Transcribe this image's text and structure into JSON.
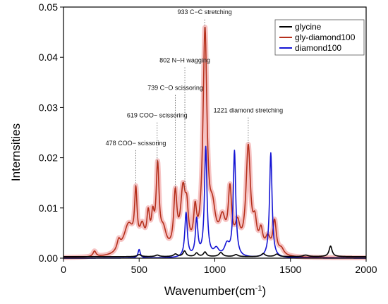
{
  "chart_data": {
    "type": "line",
    "title": "",
    "xlabel": "Wavenumber(cm",
    "xlabel_sup": "-1",
    "xlabel_suffix": ")",
    "ylabel": "Internsities",
    "xlim": [
      0,
      2000
    ],
    "ylim": [
      0,
      0.05
    ],
    "x_ticks": [
      0,
      500,
      1000,
      1500,
      2000
    ],
    "y_ticks": [
      0.0,
      0.01,
      0.02,
      0.03,
      0.04,
      0.05
    ],
    "y_tick_labels": [
      "0.00",
      "0.01",
      "0.02",
      "0.03",
      "0.04",
      "0.05"
    ],
    "grid": false,
    "legend_position": "top-right",
    "series": [
      {
        "name": "glycine",
        "color": "#000000",
        "baseline": 0.0003,
        "peaks": [
          [
            500,
            0.0004,
            15
          ],
          [
            620,
            0.0003,
            15
          ],
          [
            740,
            0.0005,
            15
          ],
          [
            800,
            0.0011,
            12
          ],
          [
            880,
            0.0007,
            12
          ],
          [
            935,
            0.0009,
            12
          ],
          [
            1040,
            0.0008,
            15
          ],
          [
            1140,
            0.0004,
            15
          ],
          [
            1320,
            0.0006,
            15
          ],
          [
            1410,
            0.0005,
            15
          ],
          [
            1600,
            0.0003,
            20
          ],
          [
            1765,
            0.0021,
            12
          ]
        ]
      },
      {
        "name": "gly-diamond100",
        "color": "#b5301c",
        "halo": "#f2aaaa",
        "baseline": 0.0,
        "peaks": [
          [
            205,
            0.0011,
            12
          ],
          [
            365,
            0.002,
            14
          ],
          [
            430,
            0.006,
            40
          ],
          [
            478,
            0.0105,
            10
          ],
          [
            520,
            0.0045,
            20
          ],
          [
            560,
            0.0065,
            12
          ],
          [
            590,
            0.0058,
            12
          ],
          [
            622,
            0.0162,
            12
          ],
          [
            660,
            0.004,
            25
          ],
          [
            739,
            0.011,
            13
          ],
          [
            790,
            0.012,
            20
          ],
          [
            815,
            0.006,
            12
          ],
          [
            870,
            0.007,
            12
          ],
          [
            935,
            0.0435,
            16
          ],
          [
            985,
            0.007,
            25
          ],
          [
            1050,
            0.006,
            25
          ],
          [
            1100,
            0.0115,
            14
          ],
          [
            1150,
            0.005,
            20
          ],
          [
            1221,
            0.021,
            18
          ],
          [
            1265,
            0.005,
            15
          ],
          [
            1305,
            0.004,
            15
          ],
          [
            1350,
            0.003,
            20
          ],
          [
            1395,
            0.0065,
            14
          ],
          [
            1440,
            0.0012,
            20
          ]
        ]
      },
      {
        "name": "diamond100",
        "color": "#1414d4",
        "baseline": 0.0,
        "peaks": [
          [
            500,
            0.0017,
            9
          ],
          [
            810,
            0.0088,
            10
          ],
          [
            880,
            0.0073,
            10
          ],
          [
            940,
            0.0218,
            10
          ],
          [
            1010,
            0.0015,
            20
          ],
          [
            1080,
            0.0023,
            20
          ],
          [
            1130,
            0.021,
            10
          ],
          [
            1370,
            0.0209,
            10
          ]
        ]
      }
    ],
    "annotations": [
      {
        "text": "933 C−C stretching",
        "x": 933,
        "y": 0.0486,
        "line_top": 0.0475
      },
      {
        "text": "802 N−H wagging",
        "x": 802,
        "y": 0.039,
        "line_top": 0.038
      },
      {
        "text": "739 C−O scissoring",
        "x": 739,
        "y": 0.0335,
        "line_top": 0.0325
      },
      {
        "text": "619 COO− scissoring",
        "x": 619,
        "y": 0.028,
        "line_top": 0.027
      },
      {
        "text": "478 COO− scissoring",
        "x": 478,
        "y": 0.0225,
        "line_top": 0.0215
      },
      {
        "text": "1221 diamond stretching",
        "x": 1221,
        "y": 0.029,
        "line_top": 0.028
      }
    ]
  }
}
